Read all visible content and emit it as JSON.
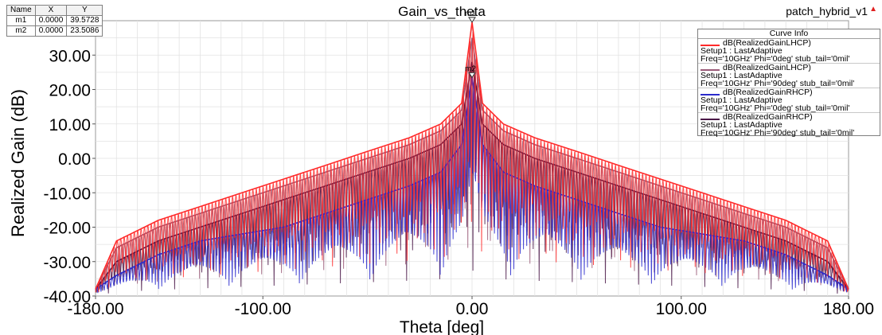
{
  "chart_data": {
    "type": "line",
    "title": "Gain_vs_theta",
    "xlabel": "Theta [deg]",
    "ylabel": "Realized Gain (dB)",
    "xlim": [
      -180,
      180
    ],
    "ylim": [
      -40,
      40
    ],
    "x_ticks": [
      -180,
      -100,
      0,
      100,
      180
    ],
    "x_tick_labels": [
      "-180.00",
      "-100.00",
      "0.00",
      "100.00",
      "180.00"
    ],
    "y_ticks": [
      -40,
      -30,
      -20,
      -10,
      0,
      10,
      20,
      30
    ],
    "y_tick_labels": [
      "-40.00",
      "-30.00",
      "-20.00",
      "-10.00",
      "0.00",
      "10.00",
      "20.00",
      "30.00"
    ],
    "grid": true,
    "legend_title": "Curve Info",
    "legend_position": "top-right",
    "series": [
      {
        "name": "dB(RealizedGainLHCP)",
        "setup": "Setup1 : LastAdaptive",
        "params": "Freq='10GHz' Phi='0deg' stub_tail='0mil'",
        "color": "#ff2a2a",
        "envelope": {
          "x": [
            -180,
            -170,
            -150,
            -130,
            -110,
            -90,
            -70,
            -50,
            -30,
            -15,
            -5,
            0,
            5,
            15,
            30,
            50,
            70,
            90,
            110,
            130,
            150,
            170,
            180
          ],
          "y": [
            -38,
            -24,
            -18,
            -14,
            -10,
            -6,
            -2,
            2,
            6,
            10,
            16,
            39.5728,
            16,
            10,
            6,
            2,
            -2,
            -6,
            -10,
            -14,
            -18,
            -24,
            -38
          ]
        }
      },
      {
        "name": "dB(RealizedGainLHCP)",
        "setup": "Setup1 : LastAdaptive",
        "params": "Freq='10GHz' Phi='90deg' stub_tail='0mil'",
        "color": "#9a5a78",
        "envelope": {
          "x": [
            -180,
            -170,
            -150,
            -130,
            -110,
            -90,
            -70,
            -50,
            -30,
            -15,
            -5,
            0,
            5,
            15,
            30,
            50,
            70,
            90,
            110,
            130,
            150,
            170,
            180
          ],
          "y": [
            -38,
            -26,
            -20,
            -16,
            -12,
            -8,
            -4,
            0,
            4,
            8,
            14,
            35,
            14,
            8,
            4,
            0,
            -4,
            -8,
            -12,
            -16,
            -20,
            -26,
            -38
          ]
        }
      },
      {
        "name": "dB(RealizedGainRHCP)",
        "setup": "Setup1 : LastAdaptive",
        "params": "Freq='10GHz' Phi='0deg' stub_tail='0mil'",
        "color": "#2a2acc",
        "envelope": {
          "x": [
            -180,
            -170,
            -150,
            -130,
            -110,
            -90,
            -70,
            -50,
            -30,
            -15,
            -5,
            0,
            5,
            15,
            30,
            50,
            70,
            90,
            110,
            130,
            150,
            170,
            180
          ],
          "y": [
            -38,
            -34,
            -28,
            -24,
            -22,
            -20,
            -16,
            -12,
            -8,
            -4,
            4,
            23.5086,
            4,
            -4,
            -8,
            -12,
            -16,
            -20,
            -22,
            -24,
            -28,
            -34,
            -38
          ]
        }
      },
      {
        "name": "dB(RealizedGainRHCP)",
        "setup": "Setup1 : LastAdaptive",
        "params": "Freq='10GHz' Phi='90deg' stub_tail='0mil'",
        "color": "#4a1848",
        "envelope": {
          "x": [
            -180,
            -170,
            -150,
            -130,
            -110,
            -90,
            -70,
            -50,
            -30,
            -15,
            -5,
            0,
            5,
            15,
            30,
            50,
            70,
            90,
            110,
            130,
            150,
            170,
            180
          ],
          "y": [
            -38,
            -30,
            -24,
            -20,
            -16,
            -12,
            -8,
            -4,
            0,
            4,
            10,
            28,
            10,
            4,
            0,
            -4,
            -8,
            -12,
            -16,
            -20,
            -24,
            -30,
            -38
          ]
        }
      }
    ],
    "markers": {
      "headers": [
        "Name",
        "X",
        "Y"
      ],
      "rows": [
        {
          "name": "m1",
          "x": "0.0000",
          "y": "39.5728"
        },
        {
          "name": "m2",
          "x": "0.0000",
          "y": "23.5086"
        }
      ]
    }
  },
  "project_name": "patch_hybrid_v1",
  "project_arrow_icon": "up-arrow-icon"
}
